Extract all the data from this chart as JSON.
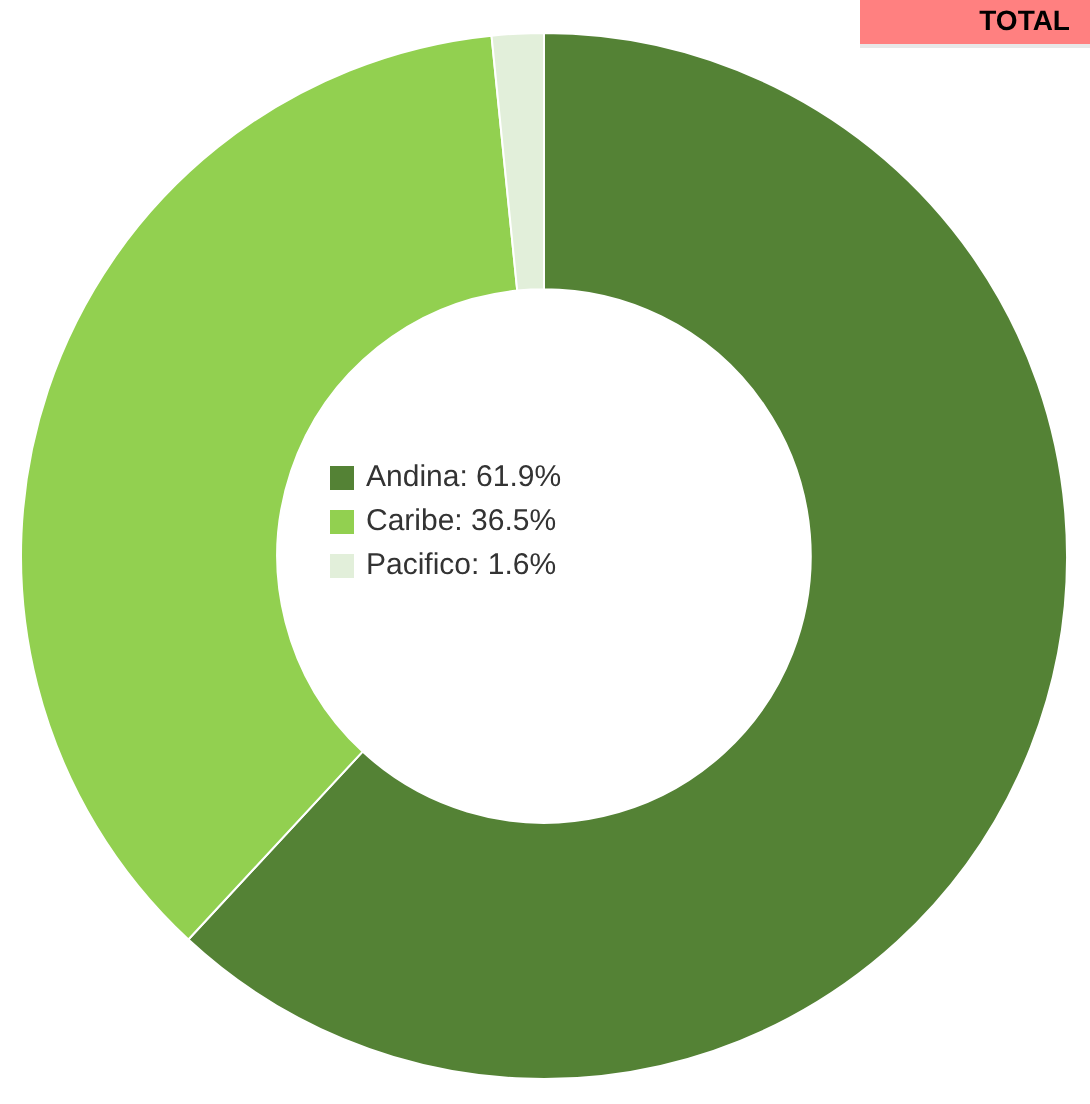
{
  "chart_data": {
    "type": "donut",
    "categories": [
      "Andina: 61.9%",
      "Caribe: 36.5%",
      "Pacifico: 1.6%"
    ],
    "values": [
      61.9,
      36.5,
      1.6
    ],
    "colors": [
      "#548235",
      "#92d050",
      "#e2efda"
    ],
    "legend": "center",
    "annotations": [
      "TOTAL"
    ]
  }
}
